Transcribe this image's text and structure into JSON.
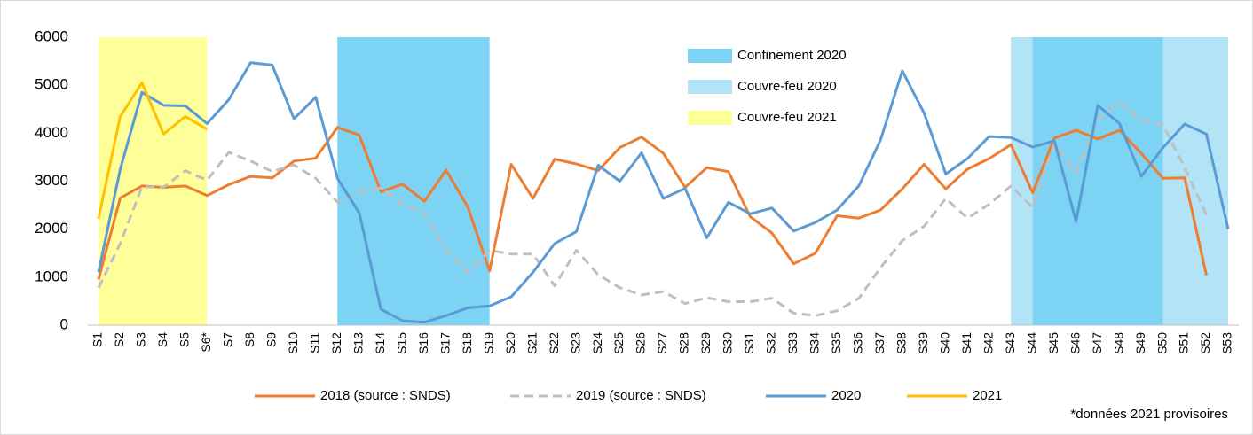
{
  "chart_data": {
    "type": "line",
    "categories": [
      "S1",
      "S2",
      "S3",
      "S4",
      "S5",
      "S6*",
      "S7",
      "S8",
      "S9",
      "S10",
      "S11",
      "S12",
      "S13",
      "S14",
      "S15",
      "S16",
      "S17",
      "S18",
      "S19",
      "S20",
      "S21",
      "S22",
      "S23",
      "S24",
      "S25",
      "S26",
      "S27",
      "S28",
      "S29",
      "S30",
      "S31",
      "S32",
      "S33",
      "S34",
      "S35",
      "S36",
      "S37",
      "S38",
      "S39",
      "S40",
      "S41",
      "S42",
      "S43",
      "S44",
      "S45",
      "S46",
      "S47",
      "S48",
      "S49",
      "S50",
      "S51",
      "S52",
      "S53"
    ],
    "ylim": [
      0,
      6000
    ],
    "yticks": [
      0,
      1000,
      2000,
      3000,
      4000,
      5000,
      6000
    ],
    "grid": false,
    "bands": [
      {
        "name": "Couvre-feu 2021",
        "color": "#ffff99",
        "start": "S1",
        "end": "S6*"
      },
      {
        "name": "Couvre-feu 2020",
        "color": "#b3e3f7",
        "start": "S43",
        "end": "S53"
      },
      {
        "name": "Confinement 2020",
        "color": "#7dd3f4",
        "start": "S12",
        "end": "S19"
      },
      {
        "name": "Confinement 2020",
        "color": "#7dd3f4",
        "start": "S44",
        "end": "S50"
      }
    ],
    "band_legend": [
      {
        "name": "Confinement 2020",
        "color": "#7dd3f4"
      },
      {
        "name": "Couvre-feu 2020",
        "color": "#b3e3f7"
      },
      {
        "name": "Couvre-feu 2021",
        "color": "#ffff99"
      }
    ],
    "series": [
      {
        "name": "2018 (source : SNDS)",
        "color": "#ed7d31",
        "dash": false,
        "values": [
          950,
          2650,
          2900,
          2870,
          2900,
          2700,
          2930,
          3100,
          3070,
          3420,
          3480,
          4120,
          3960,
          2780,
          2940,
          2580,
          3230,
          2460,
          1130,
          3350,
          2640,
          3460,
          3360,
          3220,
          3700,
          3920,
          3580,
          2870,
          3280,
          3200,
          2260,
          1920,
          1280,
          1500,
          2280,
          2230,
          2400,
          2840,
          3350,
          2840,
          3250,
          3470,
          3760,
          2760,
          3900,
          4060,
          3880,
          4060,
          3580,
          3060,
          3070,
          1040,
          null
        ]
      },
      {
        "name": "2019 (source : SNDS)",
        "color": "#bfbfbf",
        "dash": true,
        "values": [
          780,
          1700,
          2880,
          2880,
          3220,
          3020,
          3600,
          3420,
          3200,
          3340,
          3060,
          2560,
          2760,
          2860,
          2520,
          2350,
          1560,
          1100,
          1560,
          1480,
          1480,
          820,
          1560,
          1050,
          780,
          630,
          700,
          450,
          570,
          490,
          490,
          560,
          250,
          200,
          300,
          560,
          1200,
          1760,
          2060,
          2640,
          2230,
          2520,
          2900,
          2450,
          3780,
          3180,
          4280,
          4650,
          4280,
          4170,
          3280,
          2300,
          null
        ]
      },
      {
        "name": "2020",
        "color": "#5b9bd5",
        "dash": false,
        "values": [
          1100,
          3250,
          4850,
          4580,
          4570,
          4200,
          4700,
          5470,
          5420,
          4300,
          4750,
          3060,
          2340,
          330,
          90,
          60,
          200,
          360,
          400,
          590,
          1100,
          1700,
          1950,
          3330,
          3000,
          3590,
          2640,
          2850,
          1820,
          2560,
          2320,
          2440,
          1960,
          2140,
          2400,
          2900,
          3860,
          5300,
          4420,
          3150,
          3470,
          3930,
          3910,
          3710,
          3840,
          2160,
          4580,
          4200,
          3100,
          3700,
          4190,
          3980,
          2000
        ]
      },
      {
        "name": "2021",
        "color": "#ffc000",
        "dash": false,
        "values": [
          2220,
          4350,
          5050,
          3980,
          4350,
          4080,
          null,
          null,
          null,
          null,
          null,
          null,
          null,
          null,
          null,
          null,
          null,
          null,
          null,
          null,
          null,
          null,
          null,
          null,
          null,
          null,
          null,
          null,
          null,
          null,
          null,
          null,
          null,
          null,
          null,
          null,
          null,
          null,
          null,
          null,
          null,
          null,
          null,
          null,
          null,
          null,
          null,
          null,
          null,
          null,
          null,
          null,
          null
        ]
      }
    ],
    "footnote": "*données 2021 provisoires"
  }
}
